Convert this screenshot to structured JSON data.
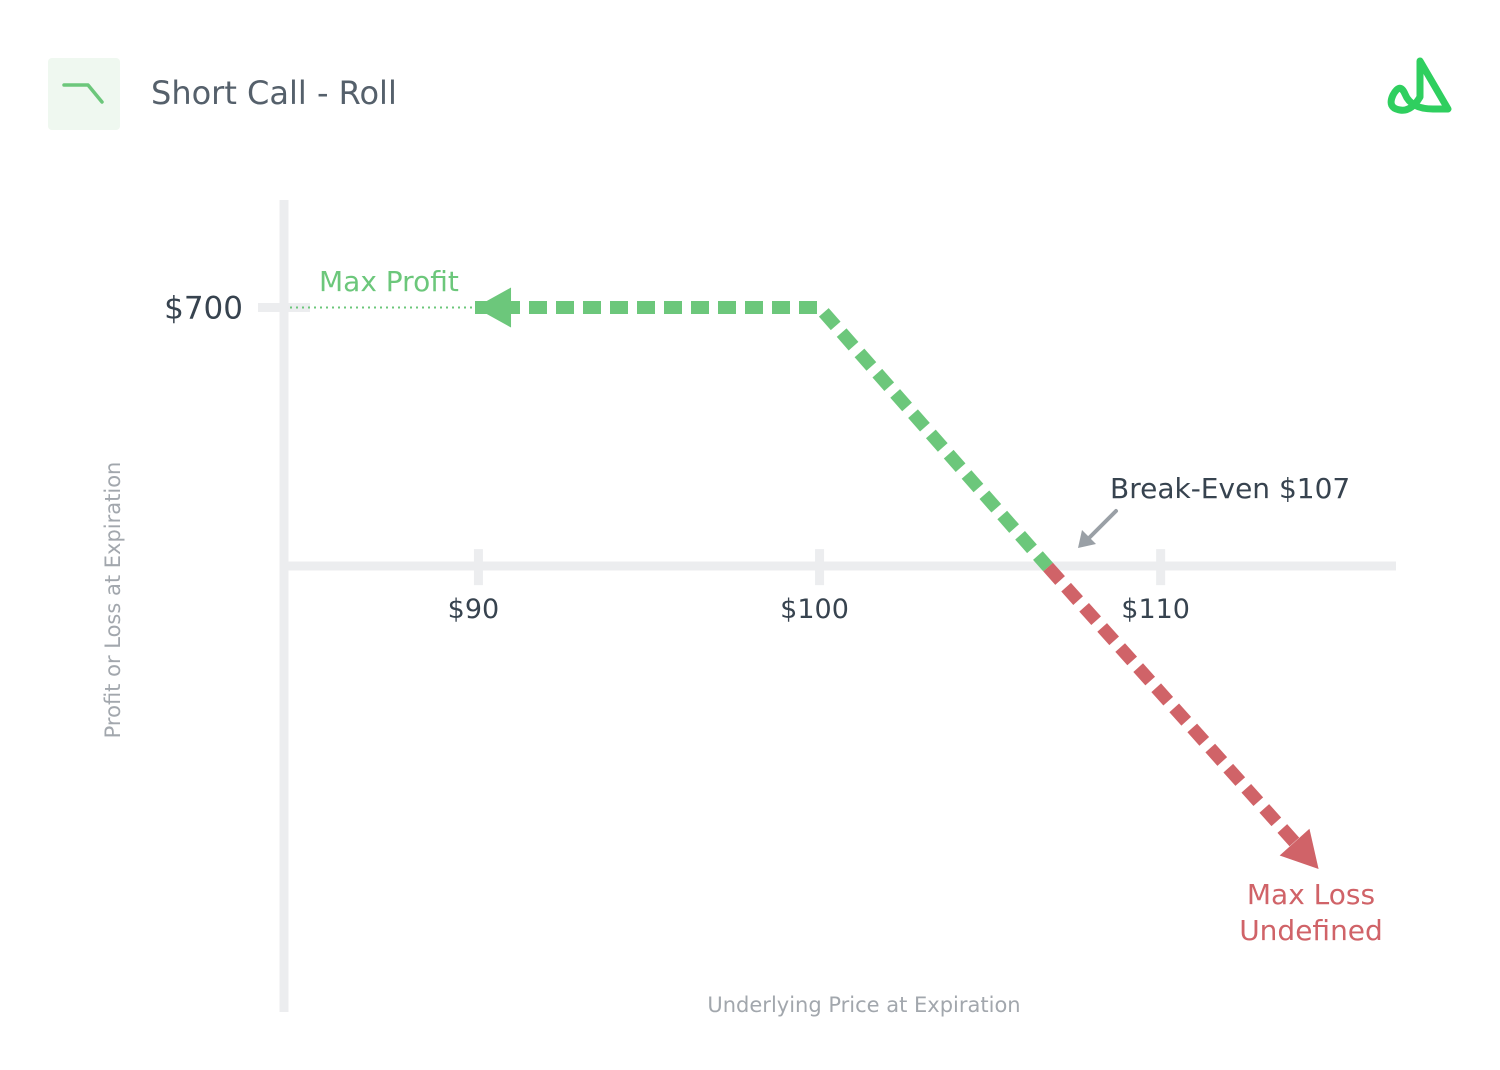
{
  "header": {
    "title": "Short Call - Roll",
    "strategy_icon": "short-call-payoff-icon",
    "logo_icon": "brand-logo-icon"
  },
  "colors": {
    "profit": "#6cc77b",
    "loss": "#d06368",
    "axis": "#ecedef",
    "label_dark": "#37434f",
    "label_muted": "#a2a7ad",
    "icon_bg": "#eff8f0",
    "logo": "#2fcf5f",
    "pointer": "#9aa0a6"
  },
  "chart_data": {
    "type": "line",
    "title": "Short Call - Roll",
    "xlabel": "Underlying Price at Expiration",
    "ylabel": "Profit or Loss at Expiration",
    "x_ticks": [
      {
        "value": 90,
        "label": "$90"
      },
      {
        "value": 100,
        "label": "$100"
      },
      {
        "value": 110,
        "label": "$110"
      }
    ],
    "y_ticks": [
      {
        "value": 700,
        "label": "$700"
      }
    ],
    "xlim": [
      84.3,
      116.9
    ],
    "ylim": [
      -1200,
      990
    ],
    "strike": 100,
    "max_profit": 700,
    "breakeven": 107,
    "series": [
      {
        "segment": "profit",
        "points": [
          [
            89.9,
            700
          ],
          [
            100,
            700
          ],
          [
            106.7,
            0
          ]
        ]
      },
      {
        "segment": "loss",
        "points": [
          [
            106.7,
            0
          ],
          [
            114.2,
            -770
          ]
        ]
      }
    ],
    "annotations": {
      "max_profit": "Max Profit",
      "breakeven": "Break-Even $107",
      "max_loss_line1": "Max Loss",
      "max_loss_line2": "Undefined"
    }
  }
}
